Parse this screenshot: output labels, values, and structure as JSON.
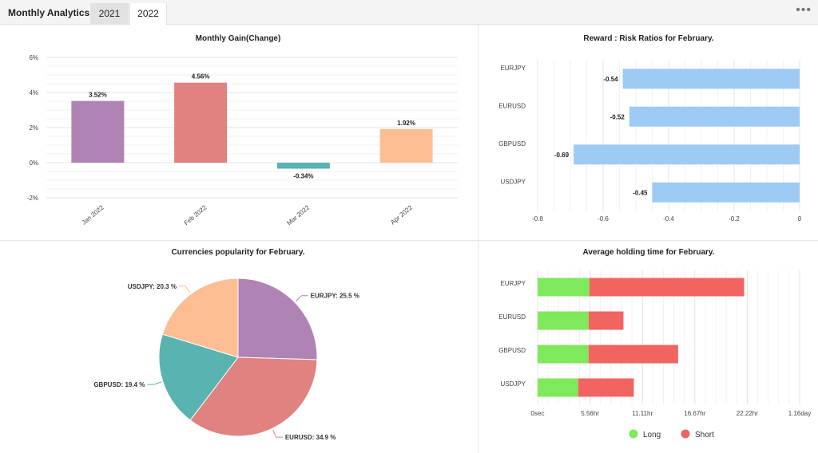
{
  "header": {
    "title": "Monthly Analytics",
    "tabs": [
      {
        "label": "2021"
      },
      {
        "label": "2022"
      }
    ],
    "more_icon": "more-horizontal-icon"
  },
  "chart_data": [
    {
      "id": "monthly-gain",
      "type": "bar",
      "title": "Monthly Gain(Change)",
      "categories": [
        "Jan 2022",
        "Feb 2022",
        "Mar 2022",
        "Apr 2022"
      ],
      "values": [
        3.52,
        4.56,
        -0.34,
        1.92
      ],
      "data_labels": [
        "3.52%",
        "4.56%",
        "-0.34%",
        "1.92%"
      ],
      "colors": [
        "#b083b5",
        "#e0827f",
        "#58b3b1",
        "#fdbe94"
      ],
      "yticks": [
        6,
        4,
        2,
        0,
        -2
      ],
      "ytick_labels": [
        "6%",
        "4%",
        "2%",
        "0%",
        "-2%"
      ],
      "ylim": [
        -2,
        6
      ],
      "grid": true
    },
    {
      "id": "reward-risk",
      "type": "bar",
      "orientation": "horizontal",
      "title": "Reward : Risk Ratios for February.",
      "categories": [
        "EURJPY",
        "EURUSD",
        "GBPUSD",
        "USDJPY"
      ],
      "values": [
        -0.54,
        -0.52,
        -0.69,
        -0.45
      ],
      "data_labels": [
        "-0.54",
        "-0.52",
        "-0.69",
        "-0.45"
      ],
      "color": "#9ecbf3",
      "xticks": [
        -0.8,
        -0.6,
        -0.4,
        -0.2,
        0
      ],
      "xtick_labels": [
        "-0.8",
        "-0.6",
        "-0.4",
        "-0.2",
        "0"
      ],
      "xlim": [
        -0.8,
        0
      ],
      "grid": true
    },
    {
      "id": "currencies-popularity",
      "type": "pie",
      "title": "Currencies popularity for February.",
      "slices": [
        {
          "label": "EURJPY",
          "value": 25.5,
          "display": "EURJPY: 25.5 %",
          "color": "#b083b5"
        },
        {
          "label": "EURUSD",
          "value": 34.9,
          "display": "EURUSD: 34.9 %",
          "color": "#e0827f"
        },
        {
          "label": "GBPUSD",
          "value": 19.4,
          "display": "GBPUSD: 19.4 %",
          "color": "#58b3b1"
        },
        {
          "label": "USDJPY",
          "value": 20.3,
          "display": "USDJPY: 20.3 %",
          "color": "#fdbe94"
        }
      ]
    },
    {
      "id": "holding-time",
      "type": "bar",
      "orientation": "horizontal",
      "stacked": true,
      "title": "Average holding time for February.",
      "categories": [
        "EURJPY",
        "EURUSD",
        "GBPUSD",
        "USDJPY"
      ],
      "x_unit": "hours",
      "series": [
        {
          "name": "Long",
          "color": "#7ee95a",
          "values": [
            5.5,
            5.4,
            5.4,
            4.3
          ]
        },
        {
          "name": "Short",
          "color": "#f16460",
          "values": [
            16.4,
            3.7,
            9.5,
            5.9
          ]
        }
      ],
      "xticks": [
        0,
        5.56,
        11.11,
        16.67,
        22.22,
        27.78
      ],
      "xtick_labels": [
        "0sec",
        "5.56hr",
        "11.11hr",
        "16.67hr",
        "22.22hr",
        "1.16day"
      ],
      "xlim": [
        0,
        27.78
      ],
      "grid": true,
      "legend": "bottom"
    }
  ]
}
